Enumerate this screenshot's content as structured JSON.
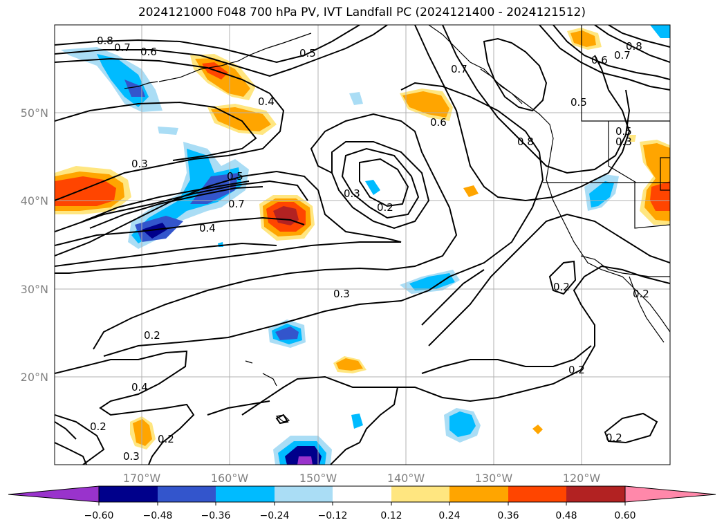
{
  "title": "2024121000 F048 700 hPa PV, IVT Landfall PC (2024121400 - 2024121512)",
  "lat_labels": [
    "50°N",
    "40°N",
    "30°N",
    "20°N"
  ],
  "lon_labels": [
    "170°W",
    "160°W",
    "150°W",
    "140°W",
    "130°W",
    "120°W"
  ],
  "colorbar": {
    "colors": [
      "#9933cc",
      "#00008b",
      "#3355cc",
      "#00bbff",
      "#aaddf5",
      "#ffffff",
      "#ffe680",
      "#ffa500",
      "#ff4500",
      "#b22222",
      "#ff88aa"
    ],
    "labels": [
      "−0.60",
      "−0.48",
      "−0.36",
      "−0.24",
      "−0.12",
      "0.12",
      "0.24",
      "0.36",
      "0.48",
      "0.60"
    ]
  },
  "contour_labels": [
    "0.8",
    "0.7",
    "0.6",
    "0.5",
    "0.7",
    "0.4",
    "0.8",
    "0.6",
    "0.7",
    "0.8",
    "0.5",
    "0.5",
    "0.3",
    "0.6",
    "0.5",
    "0.7",
    "0.4",
    "0.3",
    "0.2",
    "0.3",
    "0.2",
    "0.2",
    "0.4",
    "0.2",
    "0.2",
    "0.3",
    "0.2",
    "0.2",
    "0.2",
    "0.3"
  ]
}
